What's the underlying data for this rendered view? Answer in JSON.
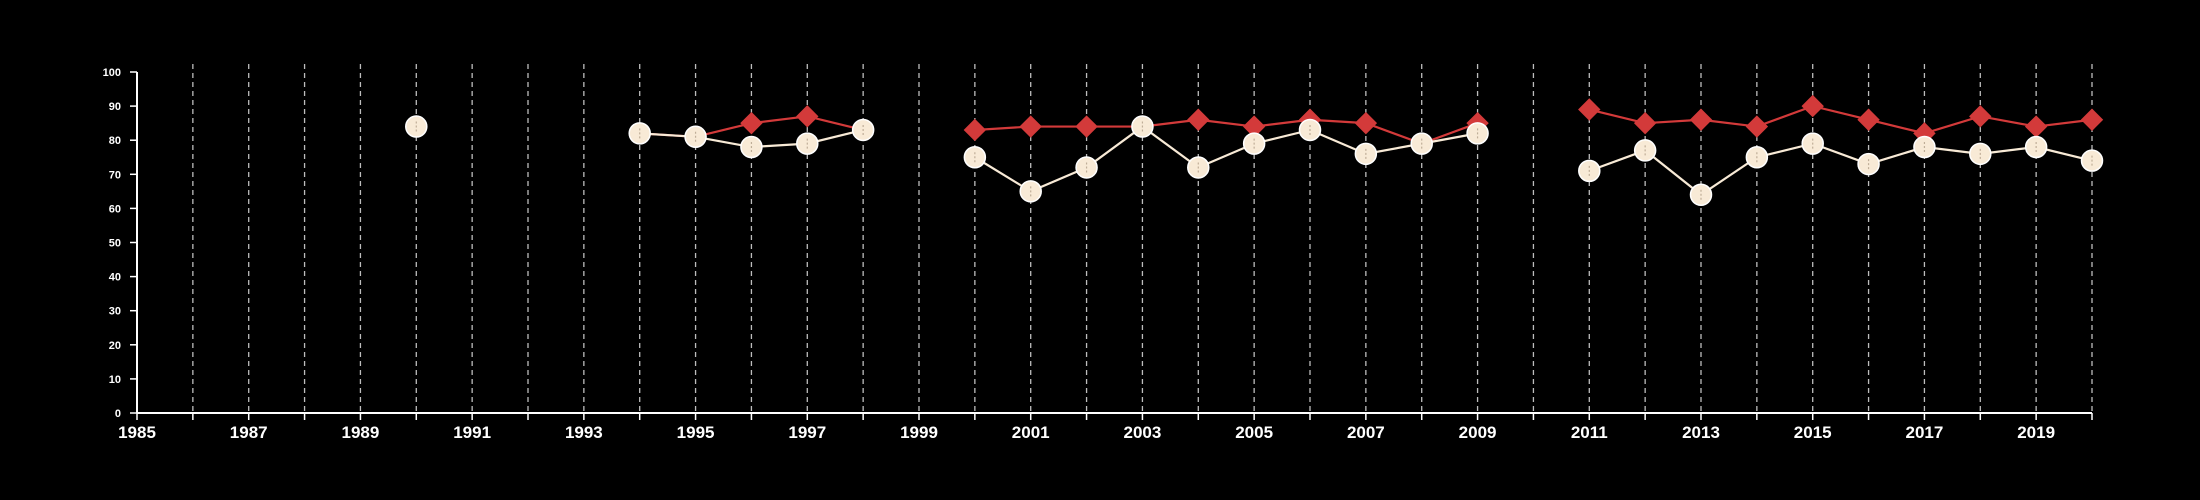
{
  "chart_data": {
    "type": "line",
    "x": [
      1985,
      1986,
      1987,
      1988,
      1989,
      1990,
      1991,
      1992,
      1993,
      1994,
      1995,
      1996,
      1997,
      1998,
      1999,
      2000,
      2001,
      2002,
      2003,
      2004,
      2005,
      2006,
      2007,
      2008,
      2009,
      2010,
      2011,
      2012,
      2013,
      2014,
      2015,
      2016,
      2017,
      2018,
      2019,
      2020
    ],
    "xlim": [
      1985,
      2020
    ],
    "ylim": [
      0,
      100
    ],
    "xticks": [
      1985,
      1987,
      1989,
      1991,
      1993,
      1995,
      1997,
      1999,
      2001,
      2003,
      2005,
      2007,
      2009,
      2011,
      2013,
      2015,
      2017,
      2019
    ],
    "yticks": [
      0,
      10,
      20,
      30,
      40,
      50,
      60,
      70,
      80,
      90,
      100
    ],
    "grid": "vertical-dashed",
    "series": [
      {
        "color": "#d33a3a",
        "marker": "diamond",
        "values": [
          null,
          null,
          null,
          null,
          null,
          84,
          null,
          null,
          null,
          82,
          81,
          85,
          87,
          83,
          null,
          83,
          84,
          84,
          84,
          86,
          84,
          86,
          85,
          79,
          85,
          null,
          89,
          85,
          86,
          84,
          90,
          86,
          82,
          87,
          84,
          86
        ]
      },
      {
        "color": "#f8ead6",
        "marker": "circle",
        "values": [
          null,
          null,
          null,
          null,
          null,
          84,
          null,
          null,
          null,
          82,
          81,
          78,
          79,
          83,
          null,
          75,
          65,
          72,
          84,
          72,
          79,
          83,
          76,
          79,
          82,
          null,
          71,
          77,
          64,
          75,
          79,
          73,
          78,
          76,
          78,
          74
        ]
      }
    ]
  }
}
